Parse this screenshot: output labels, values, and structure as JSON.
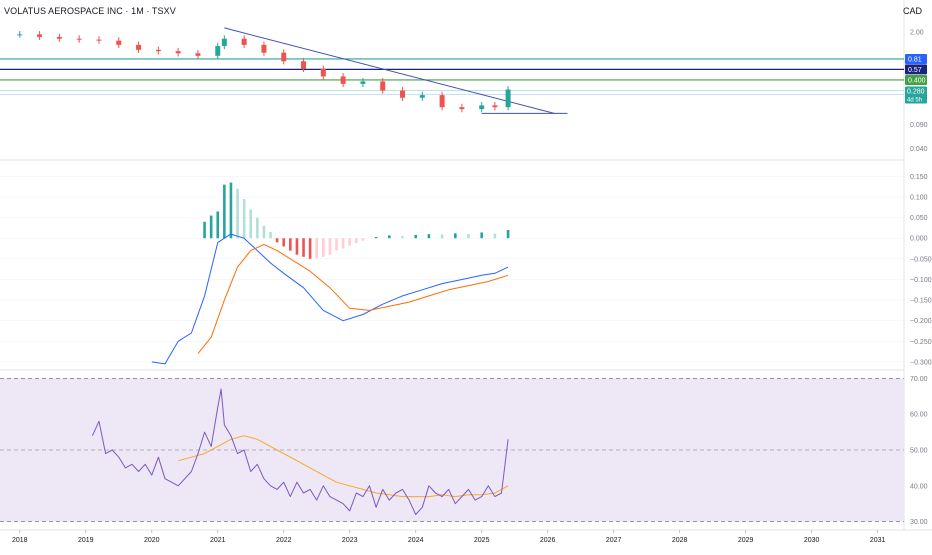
{
  "header": {
    "title": "VOLATUS AEROSPACE INC · 1M · TSXV",
    "currency": "CAD"
  },
  "colors": {
    "up": "#26a69a",
    "down": "#ef5350",
    "up_light": "#b2dfdb",
    "down_light": "#ffcdd2",
    "macd": "#2962ff",
    "signal": "#ff6d00",
    "rsi": "#7e57c2",
    "rsi_ma": "#f9a825",
    "trend": "#3f51b5",
    "level_081": "#26a69a",
    "level_057": "#1a237e",
    "level_040": "#43a047",
    "rsi_band": "#ede7f6"
  },
  "chart_data": [
    {
      "type": "line",
      "name": "price",
      "scale": "log",
      "ylim": [
        0.03,
        3.0
      ],
      "xlim": [
        2017.7,
        2031.4
      ],
      "ticks": [
        "2.00",
        "0.090",
        "0.040"
      ],
      "tick_values": [
        2.0,
        0.09,
        0.04
      ],
      "levels": [
        {
          "label": "0.81",
          "value": 0.81,
          "color": "#26a69a",
          "fill": "#2962ff"
        },
        {
          "label": "0.57",
          "value": 0.57,
          "color": "#1a237e",
          "fill": "#1a237e"
        },
        {
          "label": "0.400",
          "value": 0.4,
          "color": "#43a047",
          "fill": "#43a047"
        }
      ],
      "last_price": {
        "label": "0.280",
        "sublabel": "4d 5h",
        "value": 0.28
      },
      "x": [
        2018.0,
        2018.3,
        2018.6,
        2018.9,
        2019.2,
        2019.5,
        2019.8,
        2020.1,
        2020.4,
        2020.7,
        2021.0,
        2021.1,
        2021.4,
        2021.7,
        2022.0,
        2022.3,
        2022.6,
        2022.9,
        2023.2,
        2023.5,
        2023.8,
        2024.1,
        2024.4,
        2024.7,
        2025.0,
        2025.2,
        2025.4
      ],
      "y": [
        1.85,
        1.7,
        1.6,
        1.55,
        1.5,
        1.3,
        1.1,
        1.05,
        0.98,
        0.9,
        1.25,
        1.6,
        1.3,
        1.0,
        0.75,
        0.58,
        0.45,
        0.35,
        0.38,
        0.28,
        0.22,
        0.24,
        0.16,
        0.15,
        0.17,
        0.16,
        0.29
      ],
      "trendline": {
        "x": [
          2021.1,
          2026.1
        ],
        "y": [
          2.3,
          0.13
        ]
      },
      "support": {
        "x": [
          2025.0,
          2026.3
        ],
        "y": [
          0.13,
          0.13
        ]
      }
    },
    {
      "type": "bar",
      "name": "MACD",
      "ylim": [
        -0.31,
        0.185
      ],
      "xlim": [
        2017.7,
        2031.4
      ],
      "ticks": [
        "0.150",
        "0.100",
        "0.050",
        "0.000",
        "−0.050",
        "−0.100",
        "−0.150",
        "−0.200",
        "−0.250",
        "−0.300"
      ],
      "tick_values": [
        0.15,
        0.1,
        0.05,
        0.0,
        -0.05,
        -0.1,
        -0.15,
        -0.2,
        -0.25,
        -0.3
      ],
      "histogram": {
        "x": [
          2020.8,
          2020.9,
          2021.0,
          2021.1,
          2021.2,
          2021.3,
          2021.4,
          2021.5,
          2021.6,
          2021.7,
          2021.8,
          2021.9,
          2022.0,
          2022.1,
          2022.2,
          2022.3,
          2022.4,
          2022.5,
          2022.6,
          2022.7,
          2022.8,
          2022.9,
          2023.0,
          2023.1,
          2023.2,
          2023.4,
          2023.6,
          2023.8,
          2024.0,
          2024.2,
          2024.4,
          2024.6,
          2024.8,
          2025.0,
          2025.2,
          2025.4
        ],
        "values": [
          0.04,
          0.055,
          0.065,
          0.13,
          0.135,
          0.12,
          0.095,
          0.07,
          0.05,
          0.03,
          0.015,
          -0.01,
          -0.02,
          -0.03,
          -0.04,
          -0.045,
          -0.05,
          -0.048,
          -0.045,
          -0.04,
          -0.03,
          -0.025,
          -0.018,
          -0.012,
          -0.006,
          0.003,
          0.007,
          0.005,
          0.008,
          0.01,
          0.009,
          0.012,
          0.01,
          0.014,
          0.011,
          0.02
        ]
      },
      "macd_line": {
        "x": [
          2020.0,
          2020.2,
          2020.4,
          2020.6,
          2020.8,
          2021.0,
          2021.2,
          2021.4,
          2021.6,
          2021.8,
          2022.0,
          2022.3,
          2022.6,
          2022.9,
          2023.2,
          2023.5,
          2023.8,
          2024.1,
          2024.4,
          2024.7,
          2025.0,
          2025.2,
          2025.4
        ],
        "values": [
          -0.3,
          -0.305,
          -0.25,
          -0.23,
          -0.14,
          -0.01,
          0.01,
          0.0,
          -0.03,
          -0.06,
          -0.085,
          -0.12,
          -0.175,
          -0.2,
          -0.185,
          -0.16,
          -0.14,
          -0.125,
          -0.11,
          -0.1,
          -0.09,
          -0.085,
          -0.07
        ]
      },
      "signal_line": {
        "x": [
          2020.7,
          2020.9,
          2021.1,
          2021.3,
          2021.5,
          2021.7,
          2021.9,
          2022.1,
          2022.4,
          2022.7,
          2023.0,
          2023.3,
          2023.6,
          2023.9,
          2024.2,
          2024.5,
          2024.8,
          2025.1,
          2025.4
        ],
        "values": [
          -0.28,
          -0.24,
          -0.15,
          -0.07,
          -0.03,
          -0.015,
          -0.03,
          -0.05,
          -0.08,
          -0.12,
          -0.17,
          -0.175,
          -0.165,
          -0.155,
          -0.14,
          -0.125,
          -0.115,
          -0.105,
          -0.09
        ]
      }
    },
    {
      "type": "line",
      "name": "RSI",
      "ylim": [
        28.5,
        71.5
      ],
      "xlim": [
        2017.7,
        2031.4
      ],
      "ticks": [
        "70.00",
        "60.00",
        "50.00",
        "40.00",
        "30.00"
      ],
      "tick_values": [
        70,
        60,
        50,
        40,
        30
      ],
      "band": [
        30,
        70
      ],
      "midline": 50,
      "rsi_line": {
        "x": [
          2019.1,
          2019.2,
          2019.3,
          2019.4,
          2019.5,
          2019.6,
          2019.7,
          2019.8,
          2019.9,
          2020.0,
          2020.1,
          2020.2,
          2020.3,
          2020.4,
          2020.5,
          2020.6,
          2020.7,
          2020.8,
          2020.9,
          2021.0,
          2021.05,
          2021.1,
          2021.2,
          2021.3,
          2021.4,
          2021.5,
          2021.6,
          2021.7,
          2021.8,
          2021.9,
          2022.0,
          2022.1,
          2022.2,
          2022.3,
          2022.4,
          2022.5,
          2022.6,
          2022.7,
          2022.8,
          2022.9,
          2023.0,
          2023.1,
          2023.2,
          2023.3,
          2023.4,
          2023.5,
          2023.6,
          2023.7,
          2023.8,
          2023.9,
          2024.0,
          2024.1,
          2024.2,
          2024.3,
          2024.4,
          2024.5,
          2024.6,
          2024.7,
          2024.8,
          2024.9,
          2025.0,
          2025.1,
          2025.2,
          2025.3,
          2025.4
        ],
        "values": [
          54,
          58,
          49,
          50,
          48,
          45,
          46,
          44,
          46,
          43,
          48,
          42,
          41,
          40,
          42,
          44,
          49,
          55,
          51,
          62,
          67,
          57,
          54,
          49,
          50,
          44,
          46,
          42,
          40,
          39,
          41,
          37,
          41,
          38,
          39,
          36,
          40,
          37,
          36,
          35,
          33,
          38,
          37,
          40,
          34,
          39,
          36,
          38,
          39,
          36,
          32,
          34,
          40,
          38,
          37,
          39,
          35,
          37,
          39,
          36,
          37,
          40,
          37,
          38,
          53
        ]
      },
      "rsi_ma_line": {
        "x": [
          2020.4,
          2020.6,
          2020.8,
          2021.0,
          2021.2,
          2021.4,
          2021.6,
          2021.8,
          2022.0,
          2022.2,
          2022.4,
          2022.6,
          2022.8,
          2023.0,
          2023.2,
          2023.4,
          2023.6,
          2023.8,
          2024.0,
          2024.2,
          2024.4,
          2024.6,
          2024.8,
          2025.0,
          2025.2,
          2025.4
        ],
        "values": [
          47,
          48,
          49,
          51,
          53,
          54,
          53,
          51,
          49,
          47,
          45,
          43,
          41,
          40,
          39,
          38,
          37.5,
          37,
          37,
          37,
          37.5,
          37,
          37.5,
          37.5,
          38,
          40
        ]
      }
    }
  ],
  "x_axis": {
    "labels": [
      "2018",
      "2019",
      "2020",
      "2021",
      "2022",
      "2023",
      "2024",
      "2025",
      "2026",
      "2027",
      "2028",
      "2029",
      "2030",
      "2031"
    ],
    "values": [
      2018,
      2019,
      2020,
      2021,
      2022,
      2023,
      2024,
      2025,
      2026,
      2027,
      2028,
      2029,
      2030,
      2031
    ]
  }
}
